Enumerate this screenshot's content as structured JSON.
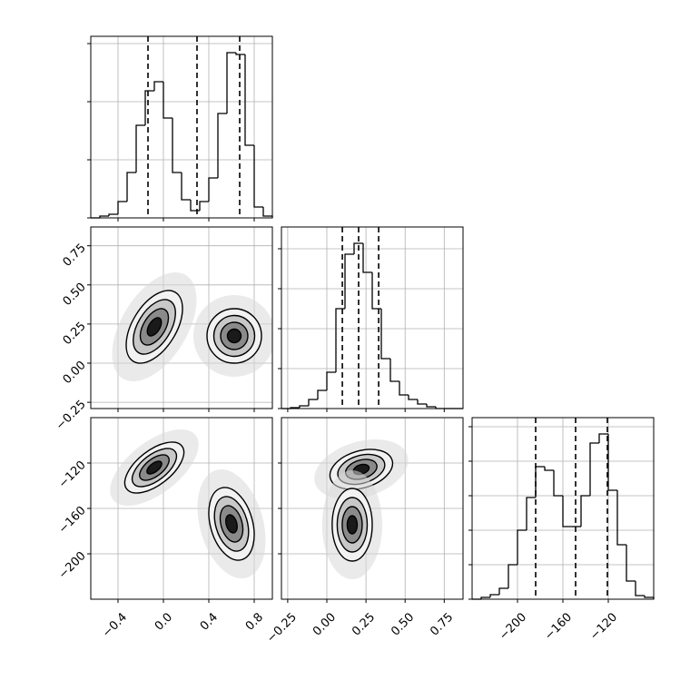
{
  "chart_data": {
    "type": "corner",
    "color": "#000000",
    "params": [
      {
        "xlim": [
          -0.64,
          0.96
        ],
        "ticks": [
          {
            "value": -0.4,
            "label": "−0.4"
          },
          {
            "value": 0.0,
            "label": "0.0"
          },
          {
            "value": 0.4,
            "label": "0.4"
          },
          {
            "value": 0.8,
            "label": "0.8"
          }
        ],
        "bins": [
          -0.64,
          -0.56,
          -0.48,
          -0.4,
          -0.32,
          -0.24,
          -0.16,
          -0.08,
          0,
          0.08,
          0.16,
          0.24,
          0.32,
          0.4,
          0.48,
          0.56,
          0.64,
          0.72,
          0.8,
          0.88,
          0.96
        ],
        "counts": [
          0,
          31,
          63,
          281,
          781,
          1594,
          2188,
          2344,
          1719,
          781,
          313,
          125,
          281,
          688,
          1797,
          2844,
          2813,
          1250,
          188,
          31
        ],
        "hist_ylim": [
          0,
          3125
        ],
        "hist_yticks": [
          0,
          1000,
          2000,
          3000
        ],
        "quantiles": [
          -0.136,
          0.296,
          0.672
        ]
      },
      {
        "xlim": [
          -0.29,
          0.87
        ],
        "ticks": [
          {
            "value": -0.25,
            "label": "−0.25"
          },
          {
            "value": 0.0,
            "label": "0.00"
          },
          {
            "value": 0.25,
            "label": "0.25"
          },
          {
            "value": 0.5,
            "label": "0.50"
          },
          {
            "value": 0.75,
            "label": "0.75"
          }
        ],
        "bins": [
          -0.29,
          -0.232,
          -0.174,
          -0.116,
          -0.058,
          0,
          0.058,
          0.116,
          0.174,
          0.232,
          0.29,
          0.348,
          0.406,
          0.464,
          0.522,
          0.58,
          0.638,
          0.696,
          0.754,
          0.812,
          0.87
        ],
        "counts": [
          0,
          23,
          68,
          227,
          455,
          909,
          2500,
          3864,
          4136,
          3409,
          2500,
          1250,
          682,
          341,
          227,
          114,
          45,
          0,
          0,
          0
        ],
        "hist_ylim": [
          0,
          4545
        ],
        "hist_yticks": [
          0,
          1000,
          2000,
          3000,
          4000
        ],
        "quantiles": [
          0.099,
          0.203,
          0.331
        ]
      },
      {
        "xlim": [
          -240,
          -80
        ],
        "ticks": [
          {
            "value": -200,
            "label": "−200"
          },
          {
            "value": -160,
            "label": "−160"
          },
          {
            "value": -120,
            "label": "−120"
          }
        ],
        "bins": [
          -240,
          -232,
          -224,
          -216,
          -208,
          -200,
          -192,
          -184,
          -176,
          -168,
          -160,
          -152,
          -144,
          -136,
          -128,
          -120,
          -112,
          -104,
          -96,
          -88,
          -80
        ],
        "counts": [
          0,
          53,
          132,
          316,
          1000,
          2000,
          2947,
          3842,
          3737,
          3000,
          2105,
          2105,
          3000,
          4526,
          4789,
          3158,
          1579,
          526,
          105,
          53
        ],
        "hist_ylim": [
          0,
          5263
        ],
        "hist_yticks": [
          0,
          1000,
          2000,
          3000,
          4000,
          5000
        ],
        "quantiles": [
          -184,
          -148.8,
          -120.8
        ]
      }
    ],
    "pairs": [
      {
        "clusters": [
          {
            "x": -0.08,
            "y": 0.232,
            "sx": 0.124,
            "sy": 0.116,
            "rho": 0.5
          },
          {
            "x": 0.624,
            "y": 0.174,
            "sx": 0.12,
            "sy": 0.087,
            "rho": 0
          }
        ]
      },
      {
        "clusters": [
          {
            "x": -0.08,
            "y": -124,
            "sx": 0.13,
            "sy": 11.2,
            "rho": 0.6
          },
          {
            "x": 0.6,
            "y": -173.6,
            "sx": 0.1,
            "sy": 16,
            "rho": -0.3
          }
        ]
      },
      {
        "clusters": [
          {
            "x": 0.22,
            "y": -125.6,
            "sx": 0.1,
            "sy": 8.8,
            "rho": 0.3
          },
          {
            "x": 0.162,
            "y": -174.4,
            "sx": 0.064,
            "sy": 16,
            "rho": 0
          }
        ]
      }
    ]
  }
}
